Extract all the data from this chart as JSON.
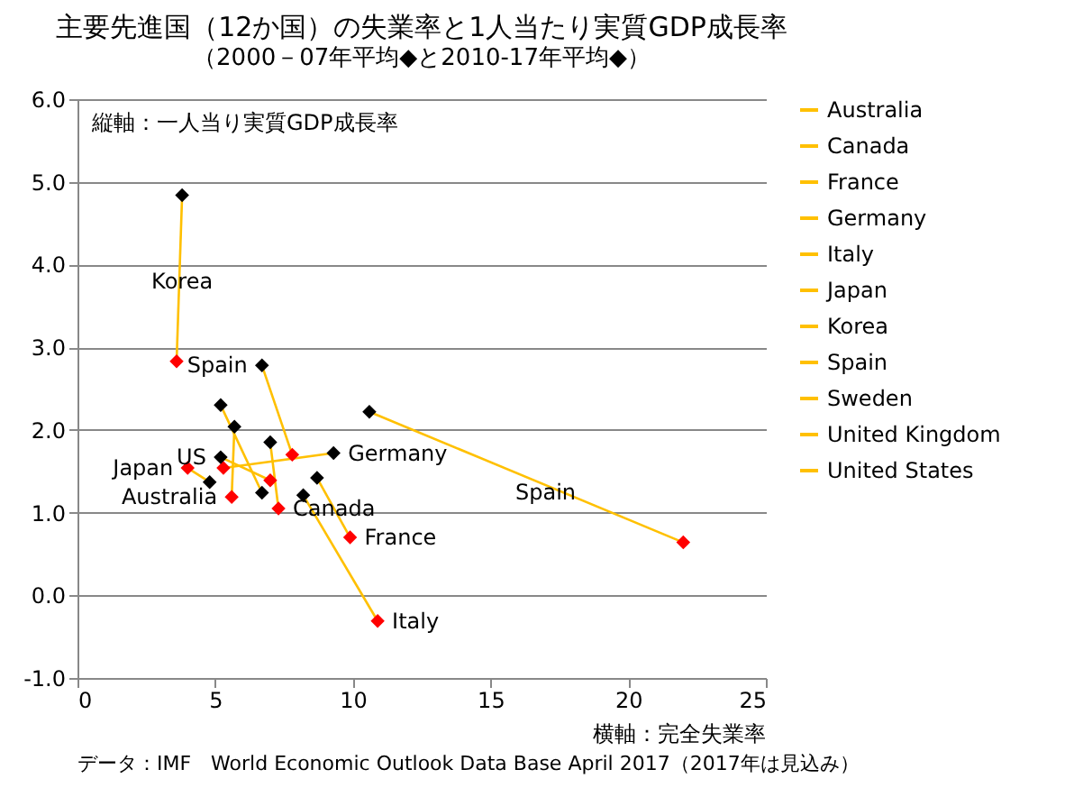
{
  "chart_data": {
    "type": "line",
    "title": "主要先進国（12か国）の失業率と1人当たり実質GDP成長率",
    "subtitle": "（2000－07年平均◆と2010-17年平均◆）",
    "xlabel": "横軸：完全失業率",
    "ylabel": "縦軸：一人当り実質GDP成長率",
    "xlim": [
      0,
      25
    ],
    "xticks": [
      0,
      5,
      10,
      15,
      20,
      25
    ],
    "ylim": [
      -1,
      6
    ],
    "yticks": [
      {
        "value": -1,
        "label": "-1.0"
      },
      {
        "value": 0,
        "label": "0.0"
      },
      {
        "value": 1,
        "label": "1.0"
      },
      {
        "value": 2,
        "label": "2.0"
      },
      {
        "value": 3,
        "label": "3.0"
      },
      {
        "value": 4,
        "label": "4.0"
      },
      {
        "value": 5,
        "label": "5.0"
      },
      {
        "value": 6,
        "label": "6.0"
      }
    ],
    "grid": "y",
    "legend": "right",
    "marker": "diamond",
    "line_style": "solid",
    "series": [
      {
        "name": "Australia",
        "color": "#ffc000",
        "x": [
          5.7,
          5.6
        ],
        "values": [
          2.04,
          1.19
        ],
        "colors": [
          "#000000",
          "#ff0000"
        ]
      },
      {
        "name": "Canada",
        "color": "#ffc000",
        "x": [
          7.0,
          7.3
        ],
        "values": [
          1.85,
          1.05
        ],
        "colors": [
          "#000000",
          "#ff0000"
        ]
      },
      {
        "name": "France",
        "color": "#ffc000",
        "x": [
          8.7,
          9.9
        ],
        "values": [
          1.42,
          0.7
        ],
        "colors": [
          "#000000",
          "#ff0000"
        ]
      },
      {
        "name": "Germany",
        "color": "#ffc000",
        "x": [
          9.3,
          5.3
        ],
        "values": [
          1.72,
          1.54
        ],
        "colors": [
          "#000000",
          "#ff0000"
        ]
      },
      {
        "name": "Italy",
        "color": "#ffc000",
        "x": [
          8.2,
          10.9
        ],
        "values": [
          1.21,
          -0.31
        ],
        "colors": [
          "#000000",
          "#ff0000"
        ]
      },
      {
        "name": "Japan",
        "color": "#ffc000",
        "x": [
          4.8,
          4.0
        ],
        "values": [
          1.37,
          1.54
        ],
        "colors": [
          "#000000",
          "#ff0000"
        ]
      },
      {
        "name": "Korea",
        "color": "#ffc000",
        "x": [
          3.8,
          3.6
        ],
        "values": [
          4.84,
          2.83
        ],
        "colors": [
          "#000000",
          "#ff0000"
        ]
      },
      {
        "name": "Spain",
        "color": "#ffc000",
        "x": [
          10.6,
          22.0
        ],
        "values": [
          2.22,
          0.64
        ],
        "colors": [
          "#000000",
          "#ff0000"
        ]
      },
      {
        "name": "Sweden",
        "color": "#ffc000",
        "x": [
          6.7,
          7.8
        ],
        "values": [
          2.78,
          1.7
        ],
        "colors": [
          "#000000",
          "#ff0000"
        ]
      },
      {
        "name": "United Kingdom",
        "color": "#ffc000",
        "x": [
          5.2,
          6.7
        ],
        "values": [
          2.3,
          1.24
        ],
        "colors": [
          "#000000",
          "#000000"
        ]
      },
      {
        "name": "United States",
        "color": "#ffc000",
        "x": [
          5.2,
          7.0
        ],
        "values": [
          1.67,
          1.39
        ],
        "colors": [
          "#000000",
          "#ff0000"
        ]
      }
    ],
    "annotations": [
      {
        "text": "Korea",
        "x": 3.8,
        "y": 3.8
      },
      {
        "text": "Spain",
        "x": 6.7,
        "y": 2.78
      },
      {
        "text": "US",
        "x": 5.2,
        "y": 1.67
      },
      {
        "text": "Japan",
        "x": 4.0,
        "y": 1.54
      },
      {
        "text": "Germany",
        "x": 9.3,
        "y": 1.72
      },
      {
        "text": "Spain",
        "x": 17,
        "y": 1.25
      },
      {
        "text": "Australia",
        "x": 5.6,
        "y": 1.19
      },
      {
        "text": "Canada",
        "x": 7.3,
        "y": 1.05
      },
      {
        "text": "France",
        "x": 9.9,
        "y": 0.7
      },
      {
        "text": "Italy",
        "x": 10.9,
        "y": -0.31
      },
      "データ：IMF　World Economic Outlook Data Base  April 2017（2017年は見込み）"
    ]
  }
}
